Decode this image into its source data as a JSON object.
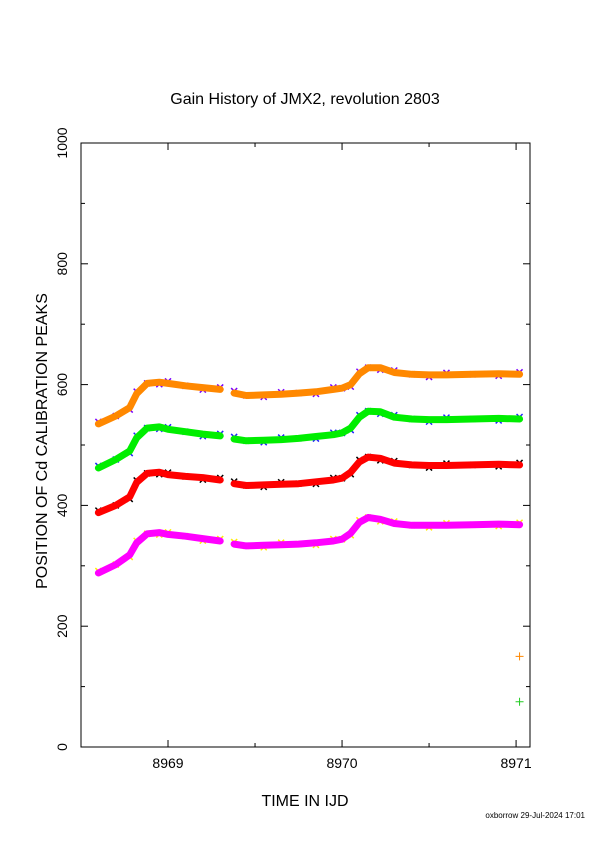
{
  "chart_data": {
    "type": "line",
    "title": "Gain History of JMX2, revolution 2803",
    "xlabel": "TIME IN IJD",
    "ylabel": "POSITION OF Cd CALIBRATION PEAKS",
    "xlim": [
      8968.5,
      8971.08
    ],
    "ylim": [
      0,
      1000
    ],
    "xticks": [
      "8969",
      "8970",
      "8971"
    ],
    "yticks": [
      "0",
      "200",
      "400",
      "600",
      "800",
      "1000"
    ],
    "grid": false,
    "footer": "oxborrow 29-Jul-2024 17:01",
    "series": [
      {
        "color": "#ff8800",
        "marker_color": "#7a00ff",
        "segments": [
          [
            [
              8968.6,
              535
            ],
            [
              8968.7,
              548
            ],
            [
              8968.78,
              562
            ],
            [
              8968.82,
              585
            ],
            [
              8968.88,
              602
            ],
            [
              8968.95,
              604
            ],
            [
              8969.0,
              602
            ],
            [
              8969.1,
              598
            ],
            [
              8969.2,
              595
            ],
            [
              8969.3,
              592
            ]
          ],
          [
            [
              8969.38,
              586
            ],
            [
              8969.45,
              582
            ],
            [
              8969.55,
              583
            ],
            [
              8969.65,
              584
            ],
            [
              8969.75,
              586
            ],
            [
              8969.85,
              588
            ],
            [
              8969.95,
              592
            ],
            [
              8970.0,
              594
            ],
            [
              8970.05,
              600
            ],
            [
              8970.1,
              618
            ],
            [
              8970.15,
              628
            ],
            [
              8970.22,
              628
            ],
            [
              8970.3,
              620
            ],
            [
              8970.4,
              617
            ],
            [
              8970.5,
              616
            ],
            [
              8970.6,
              616
            ],
            [
              8970.75,
              617
            ],
            [
              8970.9,
              618
            ],
            [
              8971.02,
              617
            ]
          ]
        ]
      },
      {
        "color": "#00ee00",
        "marker_color": "#2222ff",
        "segments": [
          [
            [
              8968.6,
              462
            ],
            [
              8968.7,
              476
            ],
            [
              8968.78,
              490
            ],
            [
              8968.82,
              512
            ],
            [
              8968.88,
              528
            ],
            [
              8968.95,
              530
            ],
            [
              8969.0,
              526
            ],
            [
              8969.1,
              522
            ],
            [
              8969.2,
              518
            ],
            [
              8969.3,
              515
            ]
          ],
          [
            [
              8969.38,
              510
            ],
            [
              8969.45,
              507
            ],
            [
              8969.55,
              508
            ],
            [
              8969.65,
              509
            ],
            [
              8969.75,
              511
            ],
            [
              8969.85,
              514
            ],
            [
              8969.95,
              517
            ],
            [
              8970.0,
              520
            ],
            [
              8970.05,
              528
            ],
            [
              8970.1,
              546
            ],
            [
              8970.15,
              556
            ],
            [
              8970.22,
              555
            ],
            [
              8970.3,
              546
            ],
            [
              8970.4,
              543
            ],
            [
              8970.5,
              542
            ],
            [
              8970.6,
              542
            ],
            [
              8970.75,
              543
            ],
            [
              8970.9,
              544
            ],
            [
              8971.02,
              543
            ]
          ]
        ]
      },
      {
        "color": "#ff0000",
        "marker_color": "#000000",
        "segments": [
          [
            [
              8968.6,
              388
            ],
            [
              8968.7,
              400
            ],
            [
              8968.78,
              414
            ],
            [
              8968.82,
              438
            ],
            [
              8968.88,
              453
            ],
            [
              8968.95,
              455
            ],
            [
              8969.0,
              451
            ],
            [
              8969.1,
              448
            ],
            [
              8969.2,
              446
            ],
            [
              8969.3,
              442
            ]
          ],
          [
            [
              8969.38,
              436
            ],
            [
              8969.45,
              433
            ],
            [
              8969.55,
              434
            ],
            [
              8969.65,
              435
            ],
            [
              8969.75,
              436
            ],
            [
              8969.85,
              439
            ],
            [
              8969.95,
              442
            ],
            [
              8970.0,
              445
            ],
            [
              8970.05,
              455
            ],
            [
              8970.1,
              472
            ],
            [
              8970.15,
              480
            ],
            [
              8970.22,
              478
            ],
            [
              8970.3,
              470
            ],
            [
              8970.4,
              467
            ],
            [
              8970.5,
              466
            ],
            [
              8970.6,
              466
            ],
            [
              8970.75,
              467
            ],
            [
              8970.9,
              468
            ],
            [
              8971.02,
              467
            ]
          ]
        ]
      },
      {
        "color": "#ff00ff",
        "marker_color": "#ffee00",
        "segments": [
          [
            [
              8968.6,
              288
            ],
            [
              8968.7,
              302
            ],
            [
              8968.78,
              318
            ],
            [
              8968.82,
              338
            ],
            [
              8968.88,
              353
            ],
            [
              8968.95,
              355
            ],
            [
              8969.0,
              352
            ],
            [
              8969.1,
              349
            ],
            [
              8969.2,
              345
            ],
            [
              8969.3,
              341
            ]
          ],
          [
            [
              8969.38,
              336
            ],
            [
              8969.45,
              333
            ],
            [
              8969.55,
              334
            ],
            [
              8969.65,
              335
            ],
            [
              8969.75,
              336
            ],
            [
              8969.85,
              338
            ],
            [
              8969.95,
              341
            ],
            [
              8970.0,
              344
            ],
            [
              8970.05,
              354
            ],
            [
              8970.1,
              372
            ],
            [
              8970.15,
              380
            ],
            [
              8970.22,
              377
            ],
            [
              8970.3,
              370
            ],
            [
              8970.4,
              367
            ],
            [
              8970.5,
              367
            ],
            [
              8970.6,
              367
            ],
            [
              8970.75,
              368
            ],
            [
              8970.9,
              369
            ],
            [
              8971.02,
              368
            ]
          ]
        ]
      }
    ],
    "extra_points": [
      {
        "x": 8971.02,
        "y": 150,
        "color": "#ff8800",
        "marker": "+"
      },
      {
        "x": 8971.02,
        "y": 75,
        "color": "#22cc22",
        "marker": "+"
      }
    ]
  }
}
